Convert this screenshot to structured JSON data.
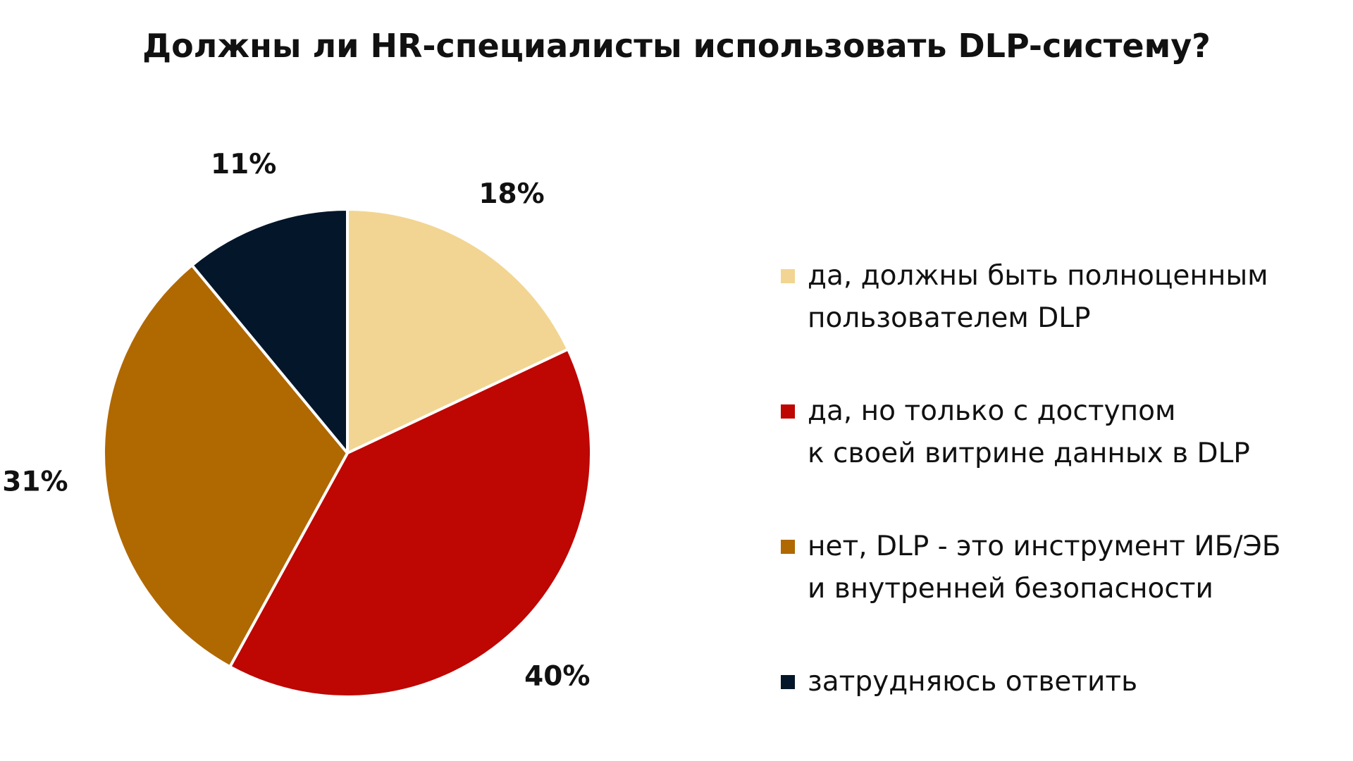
{
  "chart_data": {
    "type": "pie",
    "title": "Должны ли HR-специалисты использовать DLP-систему?",
    "slices": [
      {
        "label_lines": [
          "да, должны быть полноценным",
          "пользователем DLP"
        ],
        "value": 18,
        "value_label": "18%",
        "color": "#F2D592"
      },
      {
        "label_lines": [
          "да, но только с доступом",
          "к своей витрине данных в DLP"
        ],
        "value": 40,
        "value_label": "40%",
        "color": "#BE0602"
      },
      {
        "label_lines": [
          "нет, DLP - это инструмент ИБ/ЭБ",
          "и внутренней безопасности"
        ],
        "value": 31,
        "value_label": "31%",
        "color": "#B06800"
      },
      {
        "label_lines": [
          "затрудняюсь ответить"
        ],
        "value": 11,
        "value_label": "11%",
        "color": "#03162A"
      }
    ],
    "start": "12 o'clock",
    "direction": "clockwise",
    "legend_placement": "right"
  }
}
